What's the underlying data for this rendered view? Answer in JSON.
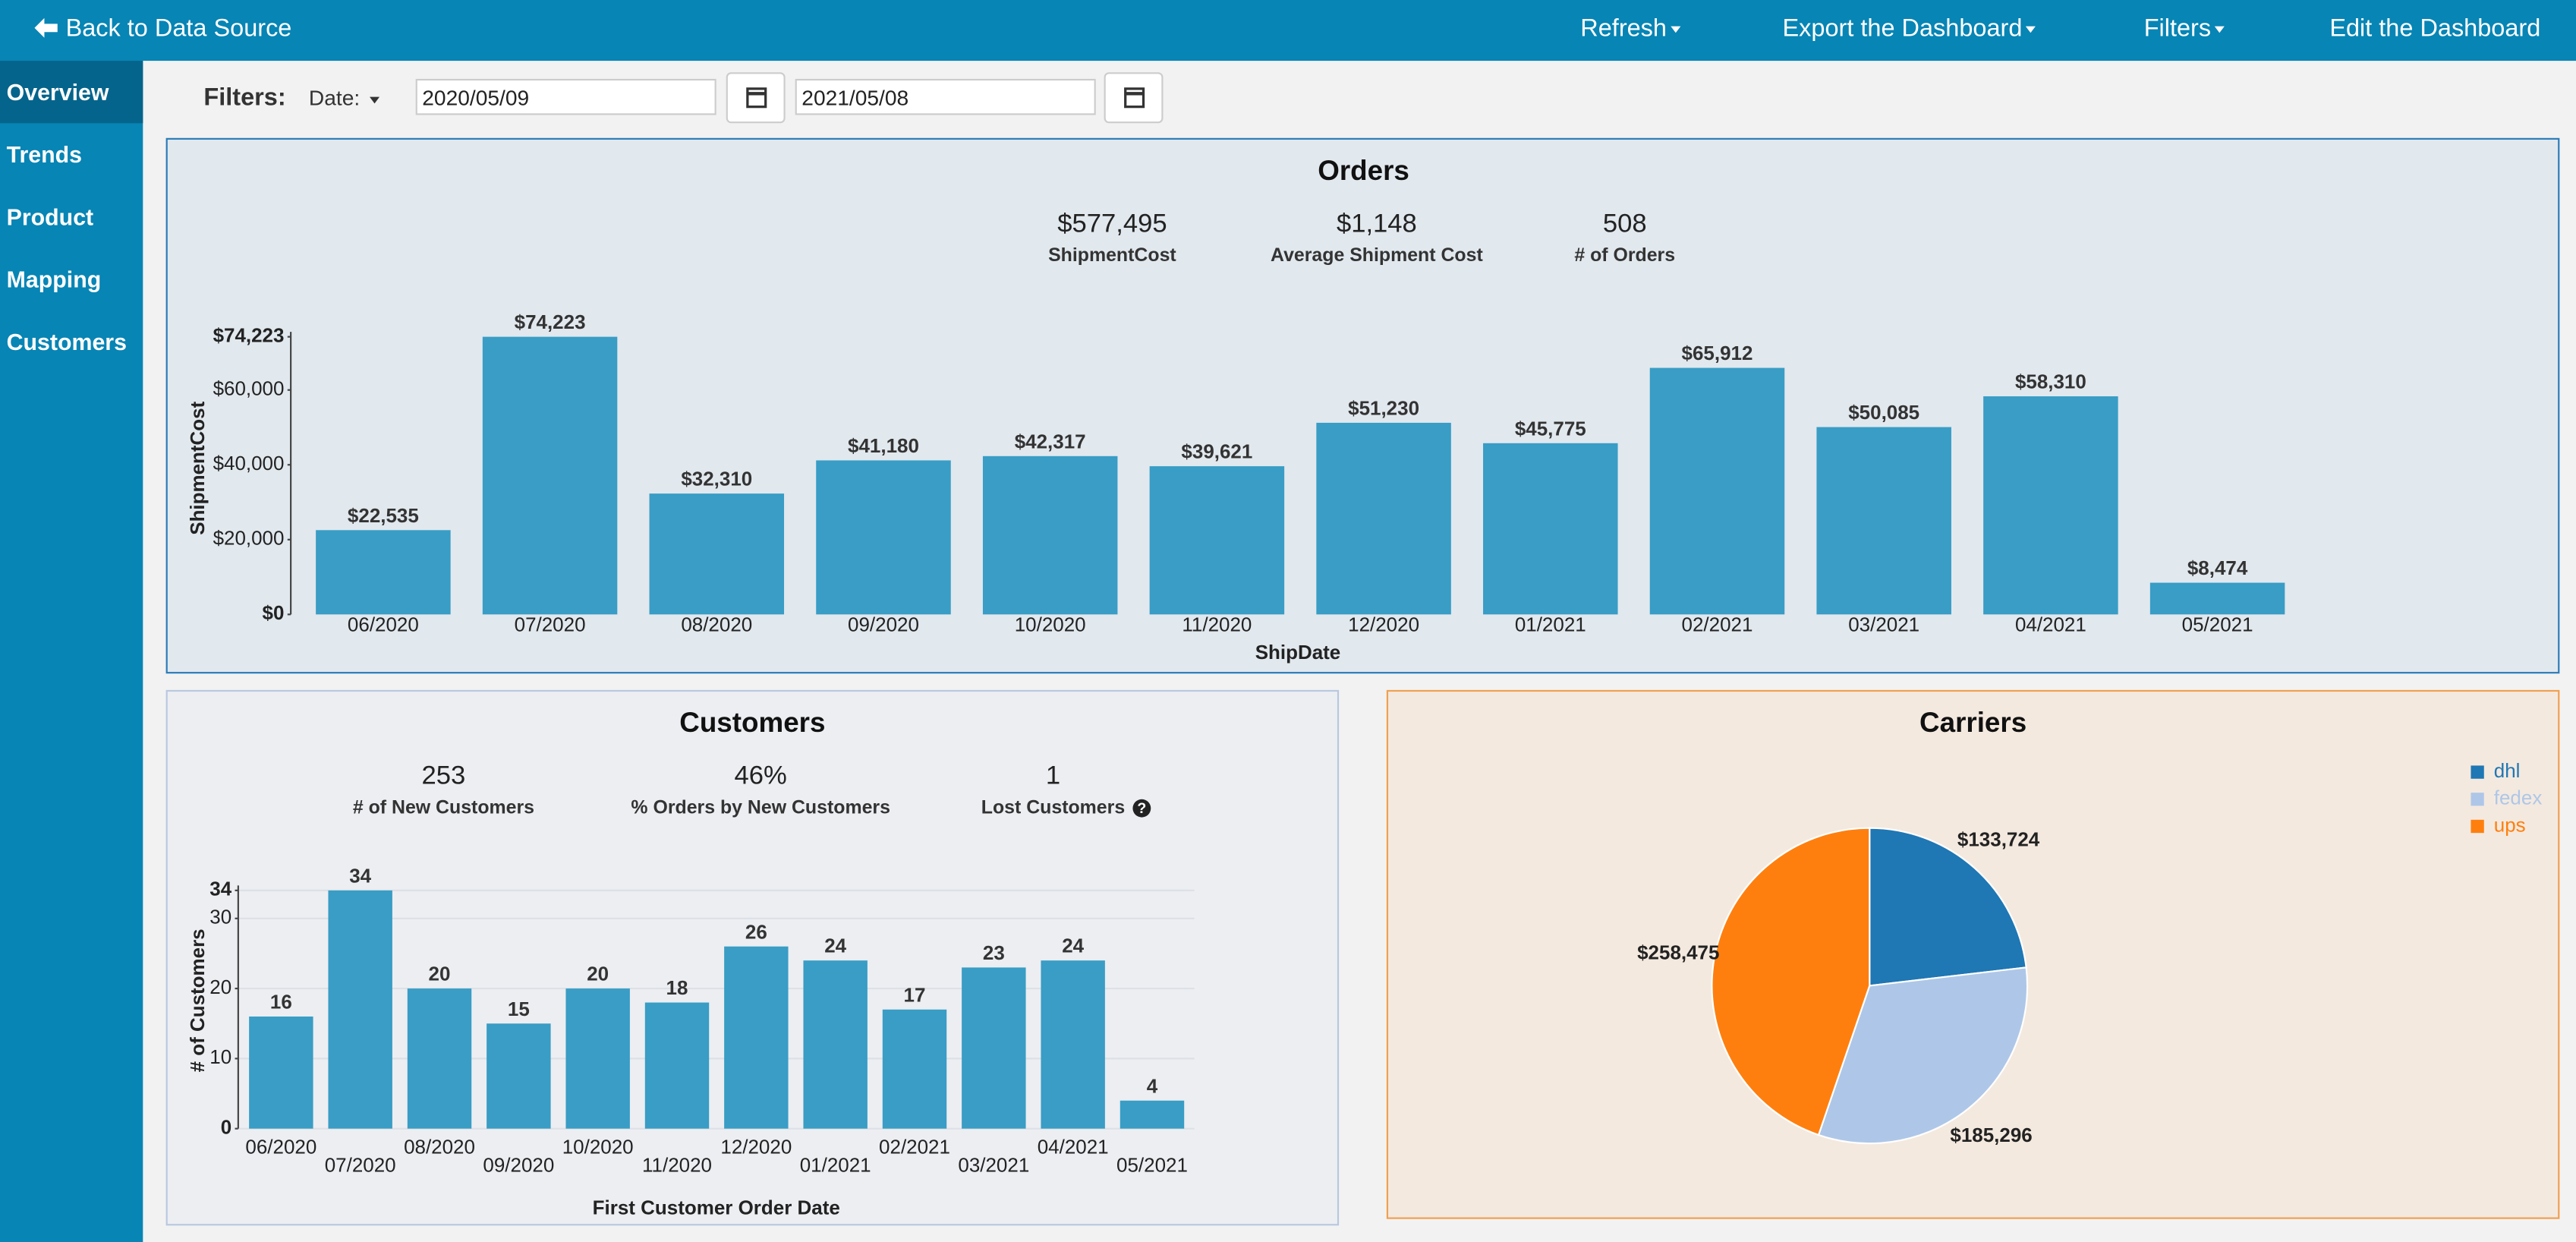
{
  "nav": {
    "back": "Back to Data Source",
    "menu": [
      "Refresh",
      "Export the Dashboard",
      "Filters",
      "Edit the Dashboard"
    ]
  },
  "sidebar": [
    "Overview",
    "Trends",
    "Product",
    "Mapping",
    "Customers"
  ],
  "filters": {
    "label": "Filters:",
    "date_label": "Date:",
    "start": "2020/05/09",
    "end": "2021/05/08"
  },
  "kpis": [
    [
      {
        "value": "$577,495",
        "label": "ShipmentCost"
      },
      {
        "value": "$1,148",
        "label": "Average Shipment Cost"
      },
      {
        "value": "508",
        "label": "# of Orders"
      }
    ],
    [
      {
        "value": "253",
        "label": "# of New Customers"
      },
      {
        "value": "46%",
        "label": "% Orders by New Customers"
      },
      {
        "value": "1",
        "label": "Lost Customers"
      }
    ]
  ],
  "chart_data": [
    {
      "type": "bar",
      "title": "Orders",
      "x_label": "ShipDate",
      "y_label": "ShipmentCost",
      "categories": [
        "06/2020",
        "07/2020",
        "08/2020",
        "09/2020",
        "10/2020",
        "11/2020",
        "12/2020",
        "01/2021",
        "02/2021",
        "03/2021",
        "04/2021",
        "05/2021"
      ],
      "values": [
        22535,
        74223,
        32310,
        41180,
        42317,
        39621,
        51230,
        45775,
        65912,
        50085,
        58310,
        8474
      ],
      "value_labels": [
        "$22,535",
        "$74,223",
        "$32,310",
        "$41,180",
        "$42,317",
        "$39,621",
        "$51,230",
        "$45,775",
        "$65,912",
        "$50,085",
        "$58,310",
        "$8,474"
      ],
      "color": "#399dc5",
      "ylim": [
        0,
        74223
      ],
      "yticks": [
        {
          "value": 0,
          "label": "$0"
        },
        {
          "value": 20000,
          "label": "$20,000"
        },
        {
          "value": 40000,
          "label": "$40,000"
        },
        {
          "value": 60000,
          "label": "$60,000"
        },
        {
          "value": 74223,
          "label": "$74,223"
        }
      ],
      "grid": false
    },
    {
      "type": "bar",
      "title": "Customers",
      "x_label": "First Customer Order Date",
      "y_label": "# of Customers",
      "categories": [
        "06/2020",
        "07/2020",
        "08/2020",
        "09/2020",
        "10/2020",
        "11/2020",
        "12/2020",
        "01/2021",
        "02/2021",
        "03/2021",
        "04/2021",
        "05/2021"
      ],
      "values": [
        16,
        34,
        20,
        15,
        20,
        18,
        26,
        24,
        17,
        23,
        24,
        4
      ],
      "color": "#399dc5",
      "ylim": [
        0,
        34
      ],
      "yticks": [
        0,
        10,
        20,
        30,
        34
      ],
      "grid": true
    },
    {
      "type": "pie",
      "title": "Carriers",
      "series": [
        {
          "name": "dhl",
          "color": "#1f77b4",
          "values": [
            133724
          ]
        },
        {
          "name": "fedex",
          "color": "#aec7e8",
          "values": [
            185296
          ]
        },
        {
          "name": "ups",
          "color": "#ff7f0e",
          "values": [
            258475
          ]
        }
      ],
      "value_labels": [
        "$133,724",
        "$185,296",
        "$258,475"
      ],
      "legend": "top-right"
    }
  ]
}
